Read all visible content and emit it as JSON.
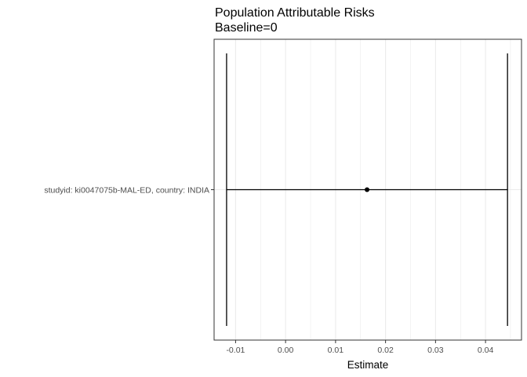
{
  "chart_data": {
    "type": "scatter",
    "title": "Population Attributable Risks",
    "subtitle": "Baseline=0",
    "xlabel": "Estimate",
    "ylabel": "",
    "xlim": [
      -0.0143,
      0.0472
    ],
    "x_ticks": [
      "-0.01",
      "0.00",
      "0.01",
      "0.02",
      "0.03",
      "0.04"
    ],
    "x_tick_values": [
      -0.01,
      0.0,
      0.01,
      0.02,
      0.03,
      0.04
    ],
    "grid": true,
    "theme": "black-and-white",
    "categories": [
      "studyid: ki0047075b-MAL-ED, country: INDIA"
    ],
    "points": [
      {
        "label": "studyid: ki0047075b-MAL-ED, country: INDIA",
        "estimate": 0.0163,
        "ci_lower": -0.0118,
        "ci_upper": 0.0444
      }
    ],
    "colors": {
      "point": "#000000",
      "errorbar": "#000000",
      "grid": "#ebebeb",
      "panel_border": "#333333"
    }
  }
}
